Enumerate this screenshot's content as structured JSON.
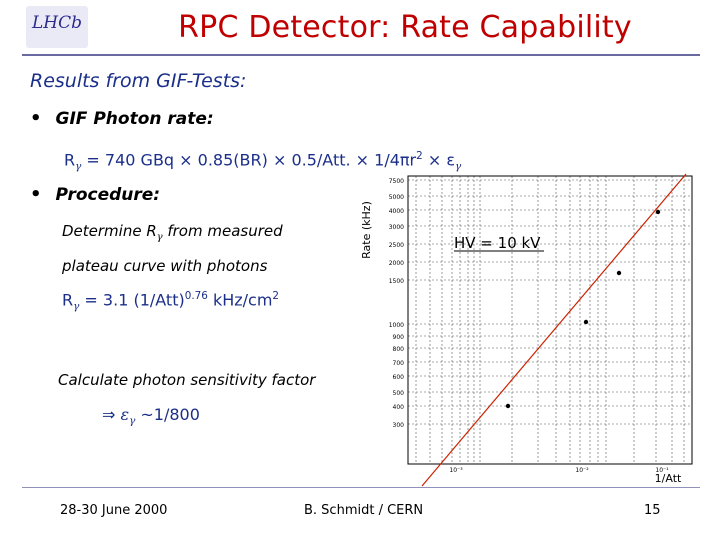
{
  "slide": {
    "title": "RPC  Detector: Rate Capability",
    "logo_text": "LHCb",
    "heading": "Results from GIF-Tests:",
    "bullet_char": "•",
    "bullet1": "GIF Photon rate:",
    "formula1": {
      "r": "R",
      "gamma": "γ",
      "text": " = 740 GBq × 0.85(BR) × 0.5/Att. × 1/4πr",
      "sup": "2",
      "tail": " × ε",
      "tail_sub": "γ"
    },
    "bullet2": "Procedure:",
    "proc_line1_a": "Determine R",
    "proc_line1_sub": "γ",
    "proc_line1_b": " from measured",
    "proc_line2": "plateau curve with photons",
    "formula2": {
      "r": "R",
      "gamma": "γ",
      "text": " = 3.1 (1/Att)",
      "sup": "0.76",
      "tail": " kHz/cm",
      "tail_sup": "2"
    },
    "calc_line": "Calculate photon sensitivity factor",
    "result": {
      "arrow": "⇒",
      "eps": "ε",
      "sub": "γ",
      "text": " ~1/800"
    }
  },
  "chart_data": {
    "type": "scatter",
    "annotation": "HV = 10 kV",
    "ylabel": "Rate (kHz)",
    "xlabel": "1/Att",
    "x_tick_labels": [
      "10⁻³",
      "10⁻²",
      "10⁻¹"
    ],
    "y_tick_labels": [
      "7500",
      "5000",
      "4000",
      "3000",
      "2500",
      "2000",
      "1500",
      "1000",
      "900",
      "800",
      "700",
      "600",
      "500",
      "400",
      "300"
    ],
    "log_x": true,
    "log_y": true,
    "grid": true,
    "fit_line_color": "#cc2200"
  },
  "footer": {
    "date": "28-30 June 2000",
    "author": "B. Schmidt / CERN",
    "page": "15"
  }
}
